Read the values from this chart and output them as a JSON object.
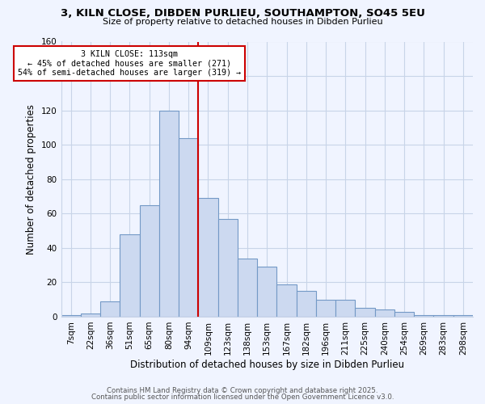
{
  "title": "3, KILN CLOSE, DIBDEN PURLIEU, SOUTHAMPTON, SO45 5EU",
  "subtitle": "Size of property relative to detached houses in Dibden Purlieu",
  "xlabel": "Distribution of detached houses by size in Dibden Purlieu",
  "ylabel": "Number of detached properties",
  "bar_labels": [
    "7sqm",
    "22sqm",
    "36sqm",
    "51sqm",
    "65sqm",
    "80sqm",
    "94sqm",
    "109sqm",
    "123sqm",
    "138sqm",
    "153sqm",
    "167sqm",
    "182sqm",
    "196sqm",
    "211sqm",
    "225sqm",
    "240sqm",
    "254sqm",
    "269sqm",
    "283sqm",
    "298sqm"
  ],
  "bar_heights": [
    1,
    2,
    9,
    48,
    65,
    120,
    104,
    69,
    57,
    34,
    29,
    19,
    15,
    10,
    10,
    5,
    4,
    3,
    1,
    1,
    1
  ],
  "bar_color": "#ccd9f0",
  "bar_edge_color": "#7399c6",
  "vline_color": "#cc0000",
  "annotation_title": "3 KILN CLOSE: 113sqm",
  "annotation_line1": "← 45% of detached houses are smaller (271)",
  "annotation_line2": "54% of semi-detached houses are larger (319) →",
  "annotation_box_color": "white",
  "annotation_box_edge": "#cc0000",
  "ylim": [
    0,
    160
  ],
  "yticks": [
    0,
    20,
    40,
    60,
    80,
    100,
    120,
    140,
    160
  ],
  "footer1": "Contains HM Land Registry data © Crown copyright and database right 2025.",
  "footer2": "Contains public sector information licensed under the Open Government Licence v3.0.",
  "bg_color": "#f0f4ff",
  "grid_color": "#c8d4e8"
}
